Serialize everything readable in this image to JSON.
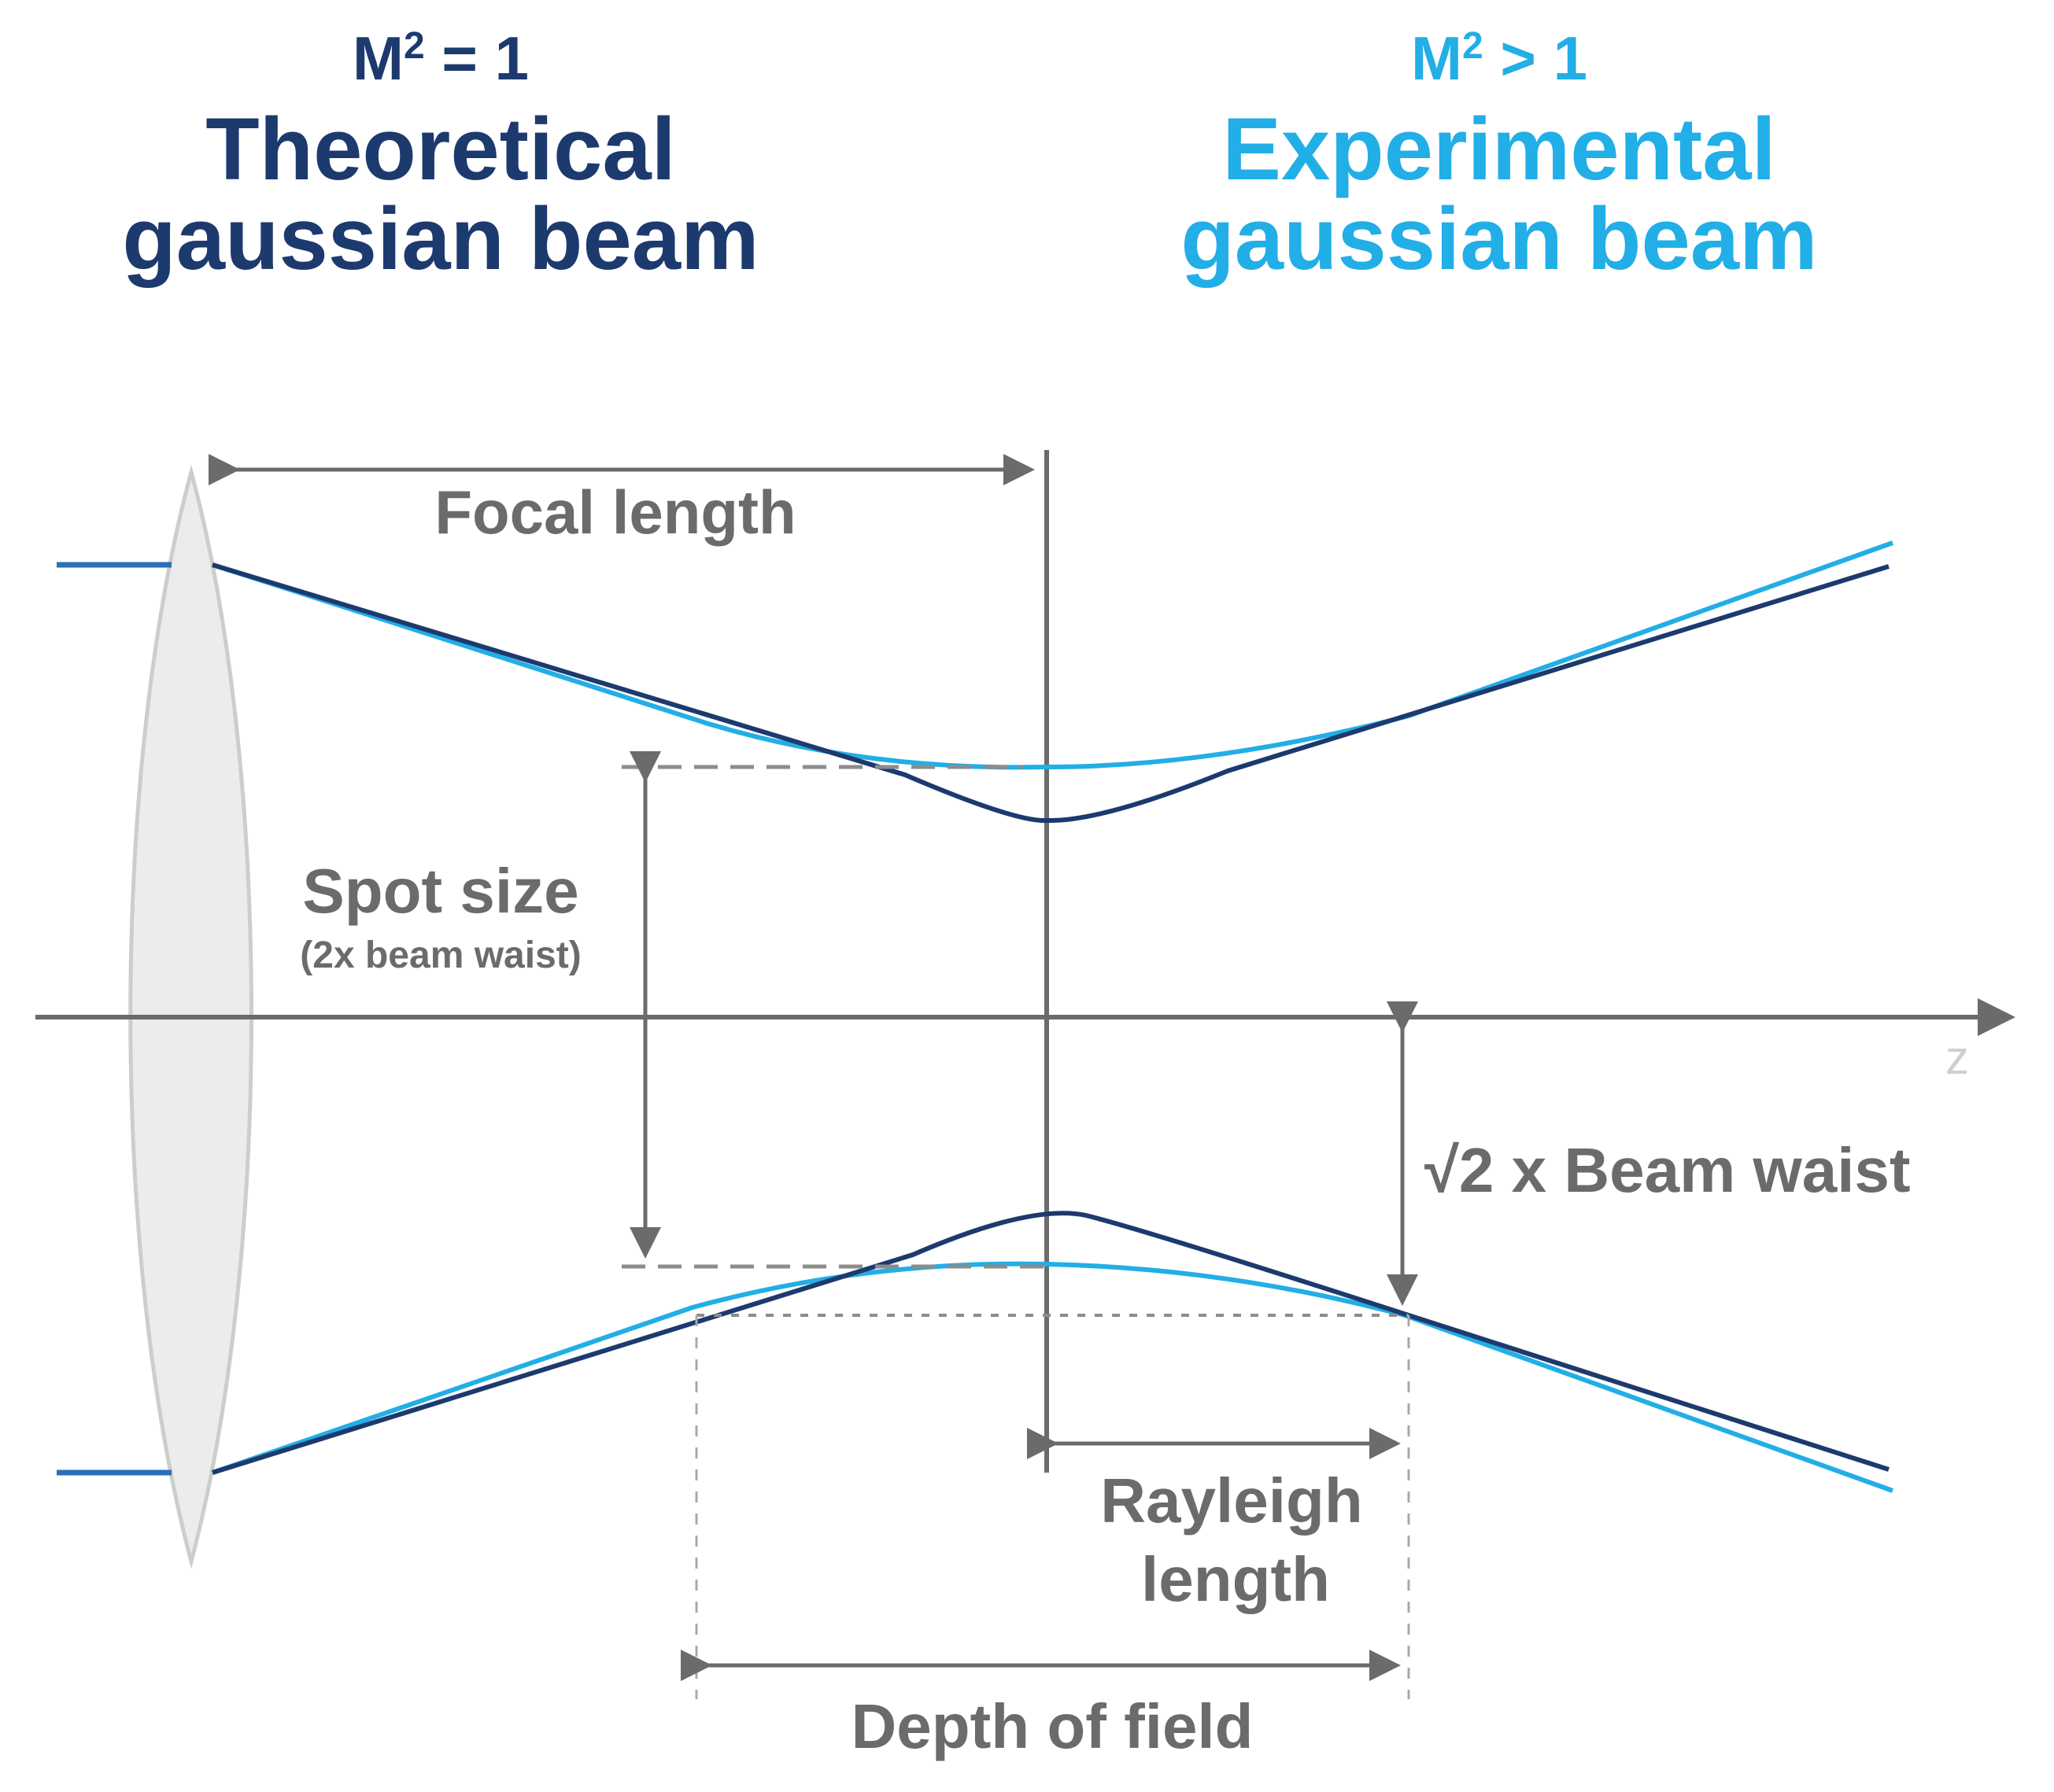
{
  "colors": {
    "theoretical": "#1d3a6e",
    "experimental": "#22aee6",
    "annotation": "#6b6b6b",
    "axis_z": "#cfcfcf",
    "lens_fill": "#ececec",
    "lens_stroke": "#cdcdcd"
  },
  "theoretical": {
    "m2_base": "M",
    "m2_sup": "2",
    "m2_rest": " = 1",
    "title_line1": "Theoretical",
    "title_line2": "gaussian beam"
  },
  "experimental": {
    "m2_base": "M",
    "m2_sup": "2",
    "m2_rest": " > 1",
    "title_line1": "Experimental",
    "title_line2": "gaussian beam"
  },
  "labels": {
    "focal_length": "Focal length",
    "spot_size": "Spot size",
    "spot_size_note": "(2x beam waist)",
    "sqrt2_symbol": "√2",
    "sqrt2_text": " x Beam waist",
    "rayleigh_line1": "Rayleigh",
    "rayleigh_line2": "length",
    "depth_of_field": "Depth of field",
    "axis_z": "z"
  }
}
